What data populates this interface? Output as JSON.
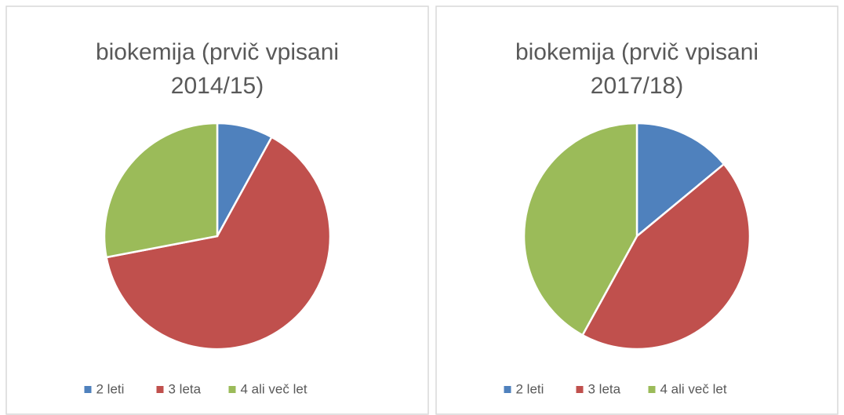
{
  "chart_data": [
    {
      "type": "pie",
      "title": [
        "biokemija (prvič vpisani",
        "2014/15)"
      ],
      "categories": [
        "2 leti",
        "3 leta",
        "4 ali več let"
      ],
      "values": [
        8,
        64,
        28
      ],
      "colors": [
        "#4f81bd",
        "#c0504d",
        "#9bbb59"
      ],
      "legend": "bottom"
    },
    {
      "type": "pie",
      "title": [
        "biokemija (prvič vpisani",
        "2017/18)"
      ],
      "categories": [
        "2 leti",
        "3 leta",
        "4 ali več let"
      ],
      "values": [
        14,
        44,
        42
      ],
      "colors": [
        "#4f81bd",
        "#c0504d",
        "#9bbb59"
      ],
      "legend": "bottom"
    }
  ]
}
